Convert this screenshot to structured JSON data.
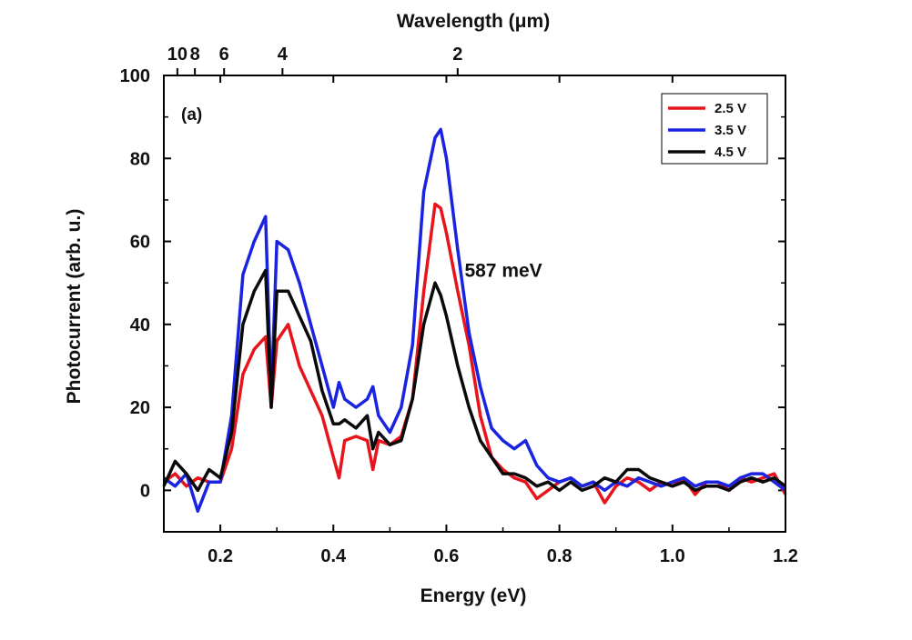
{
  "chart_data": {
    "type": "line",
    "xlabel": "Energy (eV)",
    "ylabel": "Photocurrent (arb. u.)",
    "top_xlabel": "Wavelength (μm)",
    "xlim": [
      0.1,
      1.2
    ],
    "ylim": [
      -10,
      100
    ],
    "x_ticks": [
      0.2,
      0.4,
      0.6,
      0.8,
      1.0,
      1.2
    ],
    "x_tick_labels": [
      "0.2",
      "0.4",
      "0.6",
      "0.8",
      "1.0",
      "1.2"
    ],
    "y_ticks": [
      0,
      20,
      40,
      60,
      80,
      100
    ],
    "y_tick_labels": [
      "0",
      "20",
      "40",
      "60",
      "80",
      "100"
    ],
    "top_ticks": [
      {
        "label": "10",
        "wavelength_um": 10
      },
      {
        "label": "8",
        "wavelength_um": 8
      },
      {
        "label": "6",
        "wavelength_um": 6
      },
      {
        "label": "4",
        "wavelength_um": 4
      },
      {
        "label": "2",
        "wavelength_um": 2
      }
    ],
    "panel_label": "(a)",
    "annotations": [
      {
        "text": "587 meV",
        "x": 0.6,
        "y": 53
      }
    ],
    "legend_position": "top-right",
    "grid": false,
    "x": [
      0.1,
      0.12,
      0.14,
      0.16,
      0.18,
      0.2,
      0.22,
      0.24,
      0.26,
      0.28,
      0.29,
      0.3,
      0.32,
      0.34,
      0.36,
      0.38,
      0.4,
      0.41,
      0.42,
      0.44,
      0.46,
      0.47,
      0.48,
      0.5,
      0.52,
      0.54,
      0.56,
      0.58,
      0.59,
      0.6,
      0.62,
      0.64,
      0.66,
      0.68,
      0.7,
      0.72,
      0.74,
      0.76,
      0.78,
      0.8,
      0.82,
      0.84,
      0.86,
      0.88,
      0.9,
      0.92,
      0.94,
      0.96,
      0.98,
      1.0,
      1.02,
      1.04,
      1.06,
      1.08,
      1.1,
      1.12,
      1.14,
      1.16,
      1.18,
      1.2
    ],
    "series": [
      {
        "name": "2.5 V",
        "color": "#e8141b",
        "values": [
          2,
          4,
          1,
          3,
          2,
          2,
          10,
          28,
          34,
          37,
          20,
          36,
          40,
          30,
          24,
          18,
          8,
          3,
          12,
          13,
          12,
          5,
          12,
          11,
          13,
          22,
          48,
          69,
          68,
          62,
          48,
          35,
          18,
          8,
          5,
          3,
          2,
          -2,
          0,
          2,
          3,
          1,
          2,
          -3,
          1,
          3,
          2,
          0,
          2,
          1,
          3,
          -1,
          2,
          2,
          0,
          3,
          2,
          3,
          4,
          -1
        ]
      },
      {
        "name": "3.5 V",
        "color": "#1a24e0",
        "values": [
          3,
          1,
          4,
          -5,
          2,
          2,
          18,
          52,
          60,
          66,
          22,
          60,
          58,
          50,
          40,
          30,
          20,
          26,
          22,
          20,
          22,
          25,
          18,
          14,
          20,
          35,
          72,
          85,
          87,
          80,
          58,
          38,
          25,
          15,
          12,
          10,
          12,
          6,
          3,
          2,
          3,
          1,
          2,
          0,
          2,
          1,
          3,
          2,
          1,
          2,
          3,
          1,
          2,
          2,
          1,
          3,
          4,
          4,
          2,
          0
        ]
      },
      {
        "name": "4.5 V",
        "color": "#0a0a0a",
        "values": [
          1,
          7,
          4,
          0,
          5,
          3,
          14,
          40,
          48,
          53,
          20,
          48,
          48,
          42,
          36,
          24,
          16,
          16,
          17,
          15,
          18,
          10,
          14,
          11,
          12,
          22,
          40,
          50,
          47,
          42,
          30,
          20,
          12,
          8,
          4,
          4,
          3,
          1,
          2,
          0,
          2,
          0,
          1,
          3,
          2,
          5,
          5,
          3,
          2,
          1,
          2,
          0,
          1,
          1,
          0,
          2,
          3,
          2,
          3,
          1
        ]
      }
    ]
  }
}
